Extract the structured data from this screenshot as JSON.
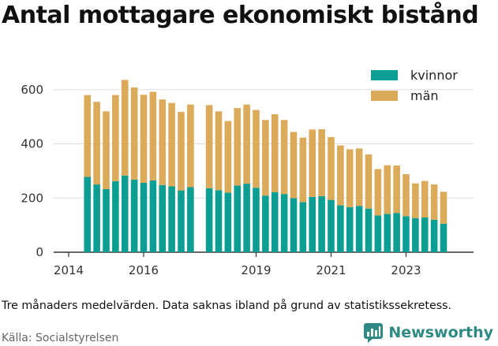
{
  "title": "Antal mottagare ekonomiskt bistånd",
  "caption": "Tre månaders medelvärden. Data saknas ibland på grund av statistikssekretess.",
  "source": "Källa: Socialstyrelsen",
  "brand": {
    "name": "Newsworthy",
    "icon": "newsworthy-logo-icon"
  },
  "colors": {
    "kvinnor": "#0c9e93",
    "man": "#dcab5a",
    "grid": "#dddddd",
    "axis": "#333333",
    "brand": "#2e8a82"
  },
  "chart_data": {
    "type": "bar",
    "stacked": true,
    "legend_position": "top-right",
    "grid": true,
    "ylim": [
      0,
      640
    ],
    "yticks": [
      0,
      200,
      400,
      600
    ],
    "xticks": [
      "2014",
      "2016",
      "2019",
      "2021",
      "2023"
    ],
    "x": [
      "2014-07",
      "2014-10",
      "2015-01",
      "2015-04",
      "2015-07",
      "2015-10",
      "2016-01",
      "2016-04",
      "2016-07",
      "2016-10",
      "2017-01",
      "2017-04",
      "2017-10",
      "2018-01",
      "2018-04",
      "2018-07",
      "2018-10",
      "2019-01",
      "2019-04",
      "2019-07",
      "2019-10",
      "2020-01",
      "2020-04",
      "2020-07",
      "2020-10",
      "2021-01",
      "2021-04",
      "2021-07",
      "2021-10",
      "2022-01",
      "2022-04",
      "2022-07",
      "2022-10",
      "2023-01",
      "2023-04",
      "2023-07",
      "2023-10",
      "2024-01"
    ],
    "series": [
      {
        "name": "kvinnor",
        "values": [
          278,
          250,
          233,
          262,
          283,
          268,
          256,
          265,
          248,
          243,
          228,
          240,
          236,
          229,
          220,
          246,
          253,
          238,
          209,
          222,
          215,
          200,
          185,
          204,
          207,
          193,
          173,
          166,
          171,
          161,
          136,
          141,
          145,
          133,
          126,
          128,
          120,
          105
        ]
      },
      {
        "name": "män",
        "values": [
          302,
          305,
          287,
          318,
          353,
          340,
          325,
          327,
          316,
          308,
          290,
          305,
          307,
          291,
          264,
          286,
          292,
          287,
          279,
          287,
          273,
          244,
          238,
          249,
          247,
          232,
          221,
          214,
          212,
          200,
          171,
          180,
          175,
          155,
          128,
          135,
          130,
          118
        ]
      }
    ]
  }
}
